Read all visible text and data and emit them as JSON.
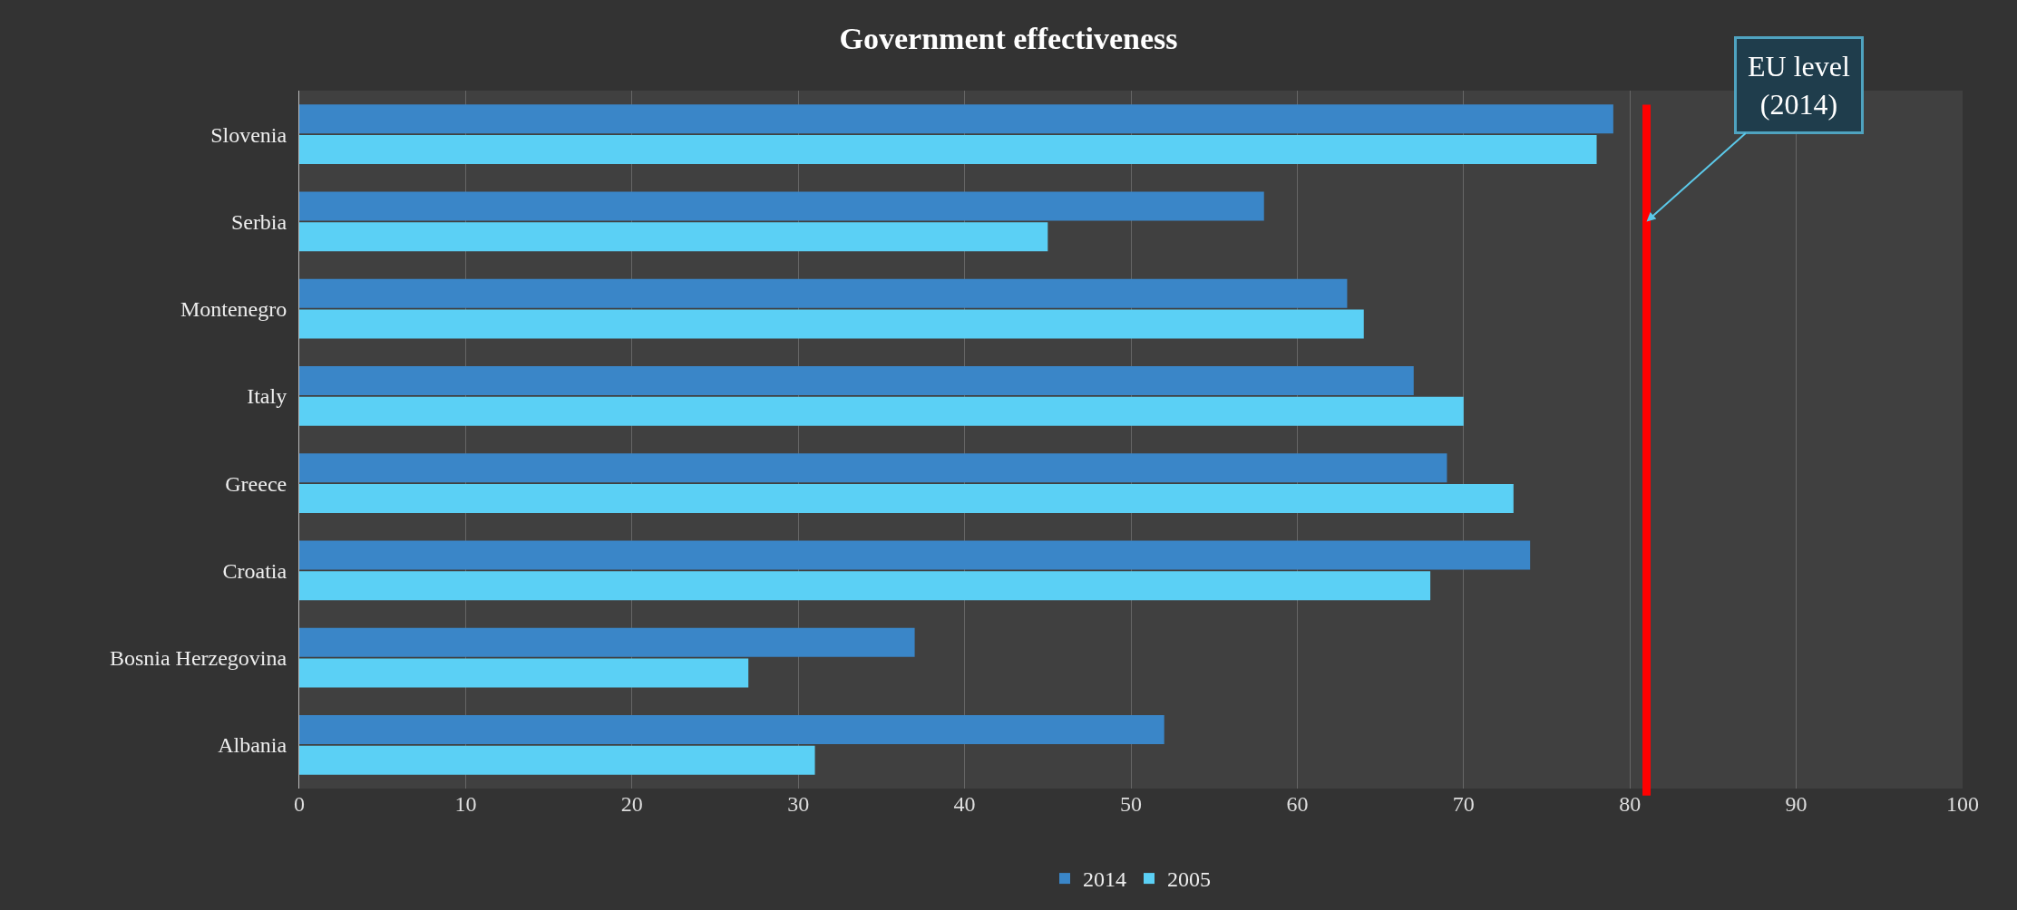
{
  "chart_data": {
    "type": "bar",
    "orientation": "horizontal",
    "title": "Government effectiveness",
    "categories": [
      "Slovenia",
      "Serbia",
      "Montenegro",
      "Italy",
      "Greece",
      "Croatia",
      "Bosnia Herzegovina",
      "Albania"
    ],
    "series": [
      {
        "name": "2014",
        "color": "#3a86c8",
        "values": [
          79,
          58,
          63,
          67,
          69,
          74,
          37,
          52
        ]
      },
      {
        "name": "2005",
        "color": "#5bd0f5",
        "values": [
          78,
          45,
          64,
          70,
          73,
          68,
          27,
          31
        ]
      }
    ],
    "xlim": [
      0,
      100
    ],
    "xticks": [
      0,
      10,
      20,
      30,
      40,
      50,
      60,
      70,
      80,
      90,
      100
    ],
    "grid": "x",
    "legend": "bottom",
    "ref_lines": [
      {
        "axis": "x",
        "value": 81,
        "label": "EU level\n(2014)",
        "color": "#ff0000"
      }
    ]
  }
}
